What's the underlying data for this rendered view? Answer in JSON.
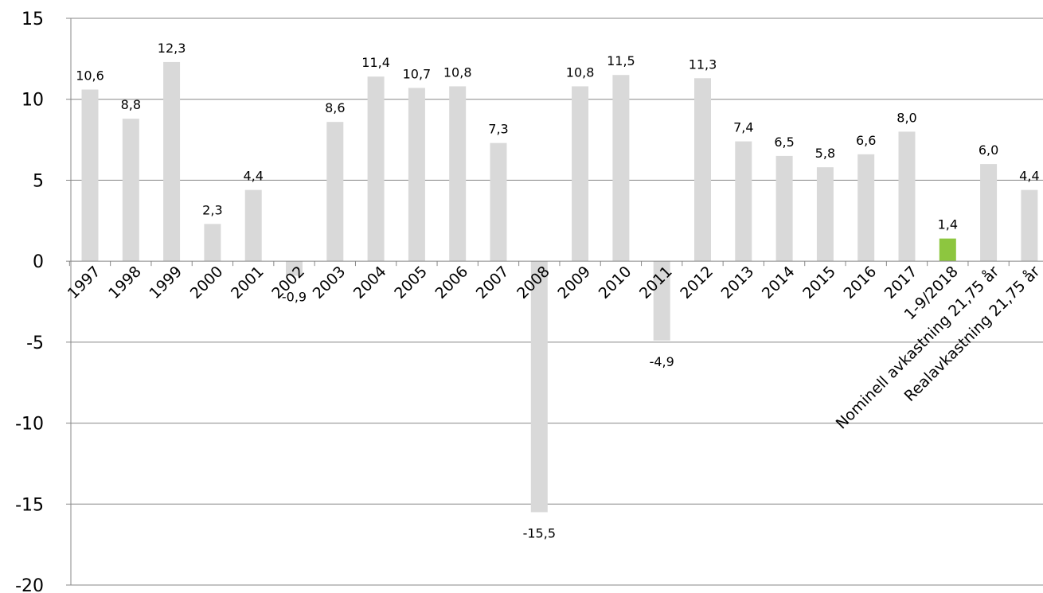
{
  "chart_data": {
    "type": "bar",
    "title": "",
    "xlabel": "",
    "ylabel": "",
    "ylim": [
      -20,
      15
    ],
    "yticks": [
      15,
      10,
      5,
      0,
      -5,
      -10,
      -15,
      -20
    ],
    "grid": true,
    "legend": "none",
    "categories": [
      "1997",
      "1998",
      "1999",
      "2000",
      "2001",
      "2002",
      "2003",
      "2004",
      "2005",
      "2006",
      "2007",
      "2008",
      "2009",
      "2010",
      "2011",
      "2012",
      "2013",
      "2014",
      "2015",
      "2016",
      "2017",
      "1-9/2018",
      "Nominell avkastning 21,75 år",
      "Realavkastning 21,75 år"
    ],
    "values": [
      10.6,
      8.8,
      12.3,
      2.3,
      4.4,
      -0.9,
      8.6,
      11.4,
      10.7,
      10.8,
      7.3,
      -15.5,
      10.8,
      11.5,
      -4.9,
      11.3,
      7.4,
      6.5,
      5.8,
      6.6,
      8.0,
      1.4,
      6.0,
      4.4
    ],
    "data_labels": [
      "10,6",
      "8,8",
      "12,3",
      "2,3",
      "4,4",
      "-0,9",
      "8,6",
      "11,4",
      "10,7",
      "10,8",
      "7,3",
      "-15,5",
      "10,8",
      "11,5",
      "-4,9",
      "11,3",
      "7,4",
      "6,5",
      "5,8",
      "6,6",
      "8,0",
      "1,4",
      "6,0",
      "4,4"
    ],
    "highlight_index": 21,
    "colors": {
      "bar": "#d9d9d9",
      "highlight": "#8dc63f",
      "grid": "#878787",
      "text": "#000000"
    }
  }
}
